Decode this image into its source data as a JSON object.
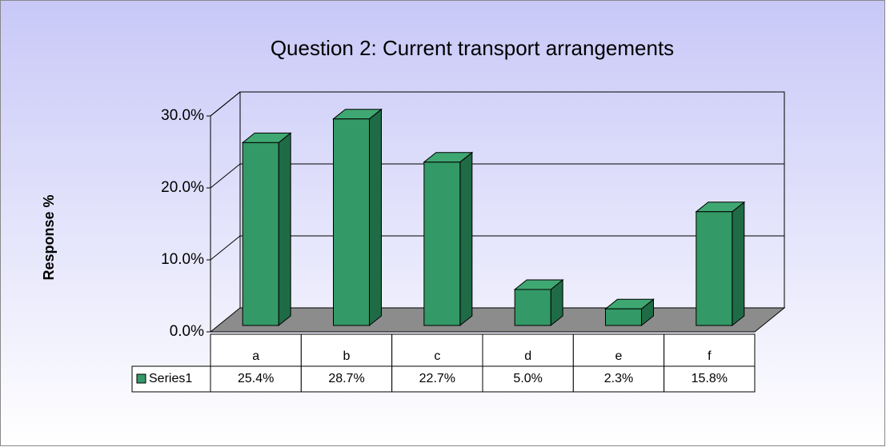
{
  "chart_data": {
    "type": "bar3d",
    "title": "Question 2: Current transport arrangements",
    "ylabel": "Response %",
    "categories": [
      "a",
      "b",
      "c",
      "d",
      "e",
      "f"
    ],
    "series": [
      {
        "name": "Series1",
        "color": "#339966",
        "values": [
          25.4,
          28.7,
          22.7,
          5.0,
          2.3,
          15.8
        ],
        "value_labels": [
          "25.4%",
          "28.7%",
          "22.7%",
          "5.0%",
          "2.3%",
          "15.8%"
        ]
      }
    ],
    "ylim": [
      0,
      30
    ],
    "yticks": [
      {
        "value": 0,
        "label": "0.0%"
      },
      {
        "value": 10,
        "label": "10.0%"
      },
      {
        "value": 20,
        "label": "20.0%"
      },
      {
        "value": 30,
        "label": "30.0%"
      }
    ],
    "grid": true
  }
}
